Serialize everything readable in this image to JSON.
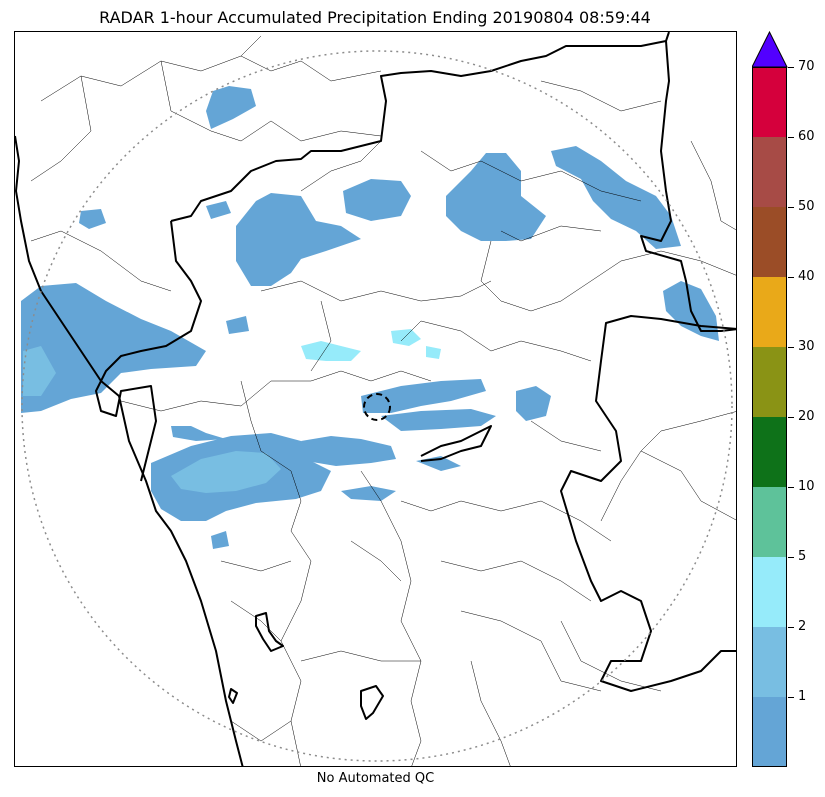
{
  "title": "RADAR 1-hour Accumulated Precipitation Ending 20190804 08:59:44",
  "qc_note": "No Automated QC",
  "colorbar": {
    "levels": [
      "1",
      "2",
      "5",
      "10",
      "20",
      "30",
      "40",
      "50",
      "60",
      "70"
    ],
    "level_values": [
      1,
      2,
      5,
      10,
      20,
      30,
      40,
      50,
      60,
      70
    ],
    "colors": [
      "#64a5d6",
      "#78bee2",
      "#96ebfa",
      "#5ec29a",
      "#0e7219",
      "#8a9315",
      "#e9a919",
      "#9b4d27",
      "#a74b46",
      "#d5003c"
    ],
    "extend_max_color": "#5200ff"
  },
  "map": {
    "boundary_color": "#000000",
    "range_ring_color": "#8c8c8c",
    "radar_site_marker": "dashed-circle"
  }
}
